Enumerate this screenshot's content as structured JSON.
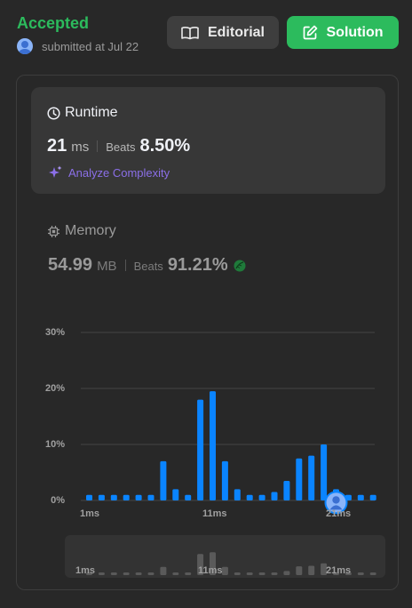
{
  "status": {
    "title": "Accepted",
    "submitted_text": "submitted at Jul 22"
  },
  "buttons": {
    "editorial_label": "Editorial",
    "solution_label": "Solution"
  },
  "runtime": {
    "heading": "Runtime",
    "value": "21",
    "unit": "ms",
    "beats_label": "Beats",
    "beats_value": "8.50%",
    "analyze_label": "Analyze Complexity"
  },
  "memory": {
    "heading": "Memory",
    "value": "54.99",
    "unit": "MB",
    "beats_label": "Beats",
    "beats_value": "91.21%"
  },
  "colors": {
    "accepted": "#2cbb5d",
    "bar": "#0a84ff",
    "brush_bar": "#5a5a5a"
  },
  "chart_data": {
    "type": "bar",
    "x": [
      1,
      2,
      3,
      4,
      5,
      6,
      7,
      8,
      9,
      10,
      11,
      12,
      13,
      14,
      15,
      16,
      17,
      18,
      19,
      20,
      21,
      22,
      23,
      24
    ],
    "values": [
      1,
      1,
      1,
      1,
      1,
      1,
      7,
      2,
      1,
      18,
      19.5,
      7,
      2,
      1,
      1,
      1.5,
      3.5,
      7.5,
      8,
      10,
      2,
      1,
      1,
      1
    ],
    "y_ticks": [
      "30%",
      "20%",
      "10%",
      "0%"
    ],
    "y_tick_values": [
      30,
      20,
      10,
      0
    ],
    "x_ticks": [
      "1ms",
      "11ms",
      "21ms"
    ],
    "x_tick_values": [
      1,
      11,
      21
    ],
    "ylim": [
      0,
      30
    ],
    "highlight_x": 21,
    "grid": true
  }
}
